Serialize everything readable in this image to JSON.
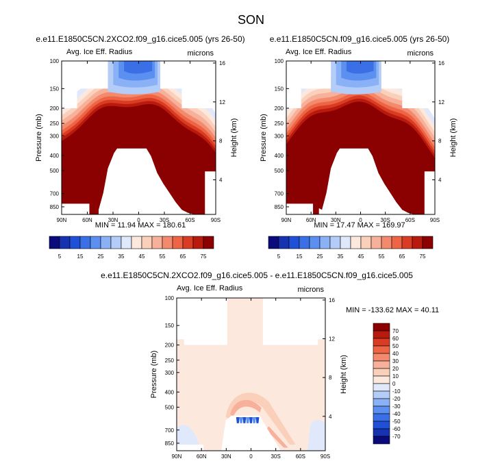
{
  "season_title": "SON",
  "panels": [
    {
      "case_title": "e.e11.E1850C5CN.2XCO2.f09_g16.cice5.005 (yrs 26-50)",
      "var_label": "Avg. Ice Eff. Radius",
      "units_label": "microns",
      "stats_text": "MIN = 11.94  MAX = 180.61"
    },
    {
      "case_title": "e.e11.E1850C5CN.f09_g16.cice5.005 (yrs 26-50)",
      "var_label": "Avg. Ice Eff. Radius",
      "units_label": "microns",
      "stats_text": "MIN = 17.47  MAX = 169.97"
    },
    {
      "case_title": "e.e11.E1850C5CN.2XCO2.f09_g16.cice5.005 - e.e11.E1850C5CN.f09_g16.cice5.005",
      "var_label": "Avg. Ice Eff. Radius",
      "units_label": "microns",
      "stats_text": "MIN = -133.62  MAX = 40.11"
    }
  ],
  "chart_data": {
    "type": "heatmap",
    "title": "SON",
    "xlabel": "",
    "ylabel": "Pressure (mb)",
    "ylabel_right": "Height (km)",
    "x_ticks": [
      "90N",
      "60N",
      "30N",
      "0",
      "30S",
      "60S",
      "90S"
    ],
    "y_ticks": [
      "100",
      "150",
      "200",
      "250",
      "300",
      "400",
      "500",
      "700",
      "850"
    ],
    "y_right_ticks": [
      "16",
      "12",
      "8",
      "4"
    ],
    "abs_colorbar": {
      "levels": [
        "5",
        "15",
        "25",
        "35",
        "45",
        "55",
        "65",
        "75"
      ],
      "colors": [
        "#0a0a7a",
        "#1533b0",
        "#1f50d8",
        "#3a6fe6",
        "#5b8ff0",
        "#8ab0f5",
        "#b4cdf8",
        "#dfe9fb",
        "#fde8de",
        "#fbd0bb",
        "#f7b19a",
        "#f48a6d",
        "#ee6545",
        "#d93c22",
        "#b81a0e",
        "#8b0000"
      ]
    },
    "diff_colorbar": {
      "levels": [
        "70",
        "60",
        "50",
        "40",
        "30",
        "20",
        "10",
        "0",
        "-10",
        "-20",
        "-30",
        "-40",
        "-50",
        "-60",
        "-70"
      ],
      "colors": [
        "#8b0000",
        "#b81a0e",
        "#d93c22",
        "#ee6545",
        "#f48a6d",
        "#f7b19a",
        "#fbd0bb",
        "#fde8de",
        "#dfe9fb",
        "#b4cdf8",
        "#8ab0f5",
        "#5b8ff0",
        "#3a6fe6",
        "#1f50d8",
        "#1533b0",
        "#0a0a7a"
      ]
    },
    "series": [
      {
        "name": "e.e11.E1850C5CN.2XCO2.f09_g16.cice5.005 (yrs 26-50)",
        "min": 11.94,
        "max": 180.61
      },
      {
        "name": "e.e11.E1850C5CN.f09_g16.cice5.005 (yrs 26-50)",
        "min": 17.47,
        "max": 169.97
      },
      {
        "name": "e.e11.E1850C5CN.2XCO2.f09_g16.cice5.005 - e.e11.E1850C5CN.f09_g16.cice5.005",
        "min": -133.62,
        "max": 40.11
      }
    ],
    "grid": false,
    "legend_position": "bottom"
  }
}
